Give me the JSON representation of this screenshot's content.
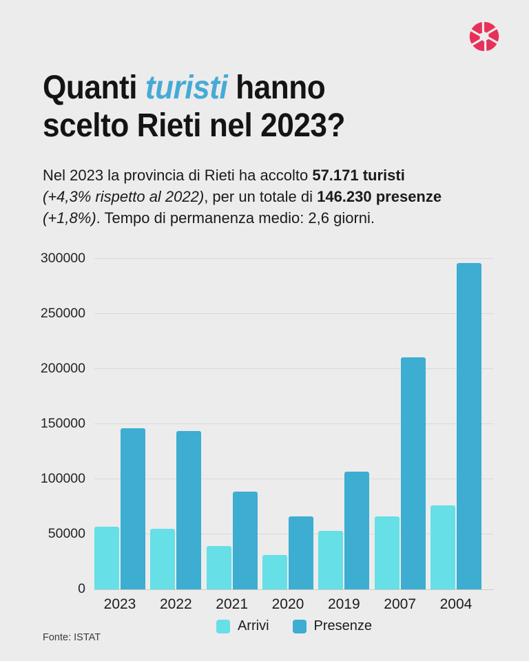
{
  "page": {
    "background": "#ececec"
  },
  "logo": {
    "name": "aperture-logo",
    "color": "#e7315a"
  },
  "header": {
    "accent_color": "#46aad6",
    "line1": [
      {
        "t": "Quanti "
      },
      {
        "t": "turisti",
        "accent": true
      },
      {
        "t": " hanno"
      }
    ],
    "line2": [
      {
        "t": "scelto Rieti nel 2023?"
      }
    ]
  },
  "intro": {
    "lines": [
      [
        {
          "t": "Nel 2023 la provincia di Rieti ha accolto "
        },
        {
          "t": "57.171 turisti",
          "bold": true
        }
      ],
      [
        {
          "t": "(+4,3% rispetto al 2022)",
          "italic": true
        },
        {
          "t": ", per un totale di "
        },
        {
          "t": "146.230 presenze",
          "bold": true
        }
      ],
      [
        {
          "t": "(+1,8%)",
          "italic": true
        },
        {
          "t": ". Tempo di permanenza medio: 2,6 giorni."
        }
      ]
    ]
  },
  "chart_data": {
    "type": "bar",
    "title": "",
    "xlabel": "",
    "ylabel": "",
    "categories": [
      "2023",
      "2022",
      "2021",
      "2020",
      "2019",
      "2007",
      "2004"
    ],
    "series": [
      {
        "name": "Arrivi",
        "color": "#66dfe6",
        "values": [
          57171,
          54800,
          39500,
          31000,
          53000,
          66000,
          76500
        ]
      },
      {
        "name": "Presenze",
        "color": "#3dadd1",
        "values": [
          146230,
          143600,
          89000,
          66000,
          107000,
          210500,
          296500
        ]
      }
    ],
    "ylim": [
      0,
      300000
    ],
    "yticks": [
      0,
      50000,
      100000,
      150000,
      200000,
      250000,
      300000
    ],
    "grid": true,
    "legend_position": "bottom"
  },
  "legend": {
    "items": [
      {
        "label": "Arrivi",
        "color": "#66dfe6"
      },
      {
        "label": "Presenze",
        "color": "#3dadd1"
      }
    ]
  },
  "footer": {
    "source": "Fonte: ISTAT"
  }
}
